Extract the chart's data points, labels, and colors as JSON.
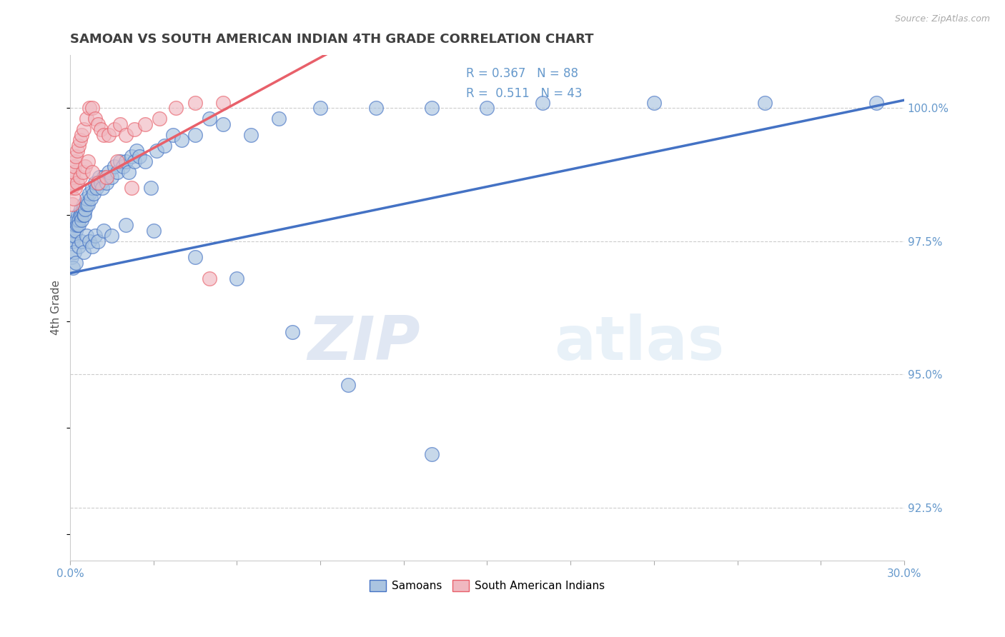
{
  "title": "SAMOAN VS SOUTH AMERICAN INDIAN 4TH GRADE CORRELATION CHART",
  "source": "Source: ZipAtlas.com",
  "ylabel": "4th Grade",
  "xlim": [
    0.0,
    30.0
  ],
  "ylim": [
    91.5,
    101.0
  ],
  "yticks": [
    92.5,
    95.0,
    97.5,
    100.0
  ],
  "ytick_labels": [
    "92.5%",
    "95.0%",
    "97.5%",
    "100.0%"
  ],
  "xticks": [
    0.0,
    3.0,
    6.0,
    9.0,
    12.0,
    15.0,
    18.0,
    21.0,
    24.0,
    27.0,
    30.0
  ],
  "legend_label1": "Samoans",
  "legend_label2": "South American Indians",
  "r1": 0.367,
  "n1": 88,
  "r2": 0.511,
  "n2": 43,
  "color1": "#aac4e0",
  "color2": "#f0b8c0",
  "line_color1": "#4472c4",
  "line_color2": "#e8606a",
  "background_color": "#ffffff",
  "grid_color": "#cccccc",
  "title_color": "#404040",
  "axis_color": "#6699cc",
  "watermark_zip": "ZIP",
  "watermark_atlas": "atlas",
  "samoans_x": [
    0.05,
    0.08,
    0.1,
    0.12,
    0.15,
    0.18,
    0.2,
    0.22,
    0.25,
    0.28,
    0.3,
    0.32,
    0.35,
    0.38,
    0.4,
    0.42,
    0.45,
    0.48,
    0.5,
    0.52,
    0.55,
    0.58,
    0.6,
    0.65,
    0.7,
    0.75,
    0.8,
    0.85,
    0.9,
    0.95,
    1.0,
    1.05,
    1.1,
    1.15,
    1.2,
    1.3,
    1.4,
    1.5,
    1.6,
    1.7,
    1.8,
    1.9,
    2.0,
    2.1,
    2.2,
    2.3,
    2.4,
    2.5,
    2.7,
    2.9,
    3.1,
    3.4,
    3.7,
    4.0,
    4.5,
    5.0,
    5.5,
    6.5,
    7.5,
    9.0,
    11.0,
    13.0,
    15.0,
    17.0,
    21.0,
    25.0,
    29.0,
    0.05,
    0.1,
    0.15,
    0.2,
    0.3,
    0.4,
    0.5,
    0.6,
    0.7,
    0.8,
    0.9,
    1.0,
    1.2,
    1.5,
    2.0,
    3.0,
    4.5,
    6.0,
    8.0,
    10.0,
    13.0
  ],
  "samoans_y": [
    97.5,
    97.6,
    97.5,
    97.7,
    97.6,
    97.8,
    97.7,
    97.9,
    97.8,
    98.0,
    97.9,
    97.8,
    98.0,
    98.1,
    98.0,
    97.9,
    98.1,
    98.0,
    98.2,
    98.0,
    98.1,
    98.2,
    98.3,
    98.2,
    98.4,
    98.3,
    98.5,
    98.4,
    98.6,
    98.5,
    98.6,
    98.7,
    98.6,
    98.5,
    98.7,
    98.6,
    98.8,
    98.7,
    98.9,
    98.8,
    99.0,
    98.9,
    99.0,
    98.8,
    99.1,
    99.0,
    99.2,
    99.1,
    99.0,
    98.5,
    99.2,
    99.3,
    99.5,
    99.4,
    99.5,
    99.8,
    99.7,
    99.5,
    99.8,
    100.0,
    100.0,
    100.0,
    100.0,
    100.1,
    100.1,
    100.1,
    100.1,
    97.2,
    97.0,
    97.3,
    97.1,
    97.4,
    97.5,
    97.3,
    97.6,
    97.5,
    97.4,
    97.6,
    97.5,
    97.7,
    97.6,
    97.8,
    97.7,
    97.2,
    96.8,
    95.8,
    94.8,
    93.5
  ],
  "sa_indians_x": [
    0.05,
    0.08,
    0.1,
    0.12,
    0.15,
    0.18,
    0.2,
    0.25,
    0.3,
    0.35,
    0.4,
    0.5,
    0.6,
    0.7,
    0.8,
    0.9,
    1.0,
    1.1,
    1.2,
    1.4,
    1.6,
    1.8,
    2.0,
    2.3,
    2.7,
    3.2,
    3.8,
    4.5,
    5.5,
    0.08,
    0.12,
    0.18,
    0.25,
    0.35,
    0.45,
    0.55,
    0.65,
    0.8,
    1.0,
    1.3,
    1.7,
    2.2,
    5.0
  ],
  "sa_indians_y": [
    98.5,
    98.6,
    98.7,
    98.8,
    98.9,
    99.0,
    99.1,
    99.2,
    99.3,
    99.4,
    99.5,
    99.6,
    99.8,
    100.0,
    100.0,
    99.8,
    99.7,
    99.6,
    99.5,
    99.5,
    99.6,
    99.7,
    99.5,
    99.6,
    99.7,
    99.8,
    100.0,
    100.1,
    100.1,
    98.2,
    98.3,
    98.5,
    98.6,
    98.7,
    98.8,
    98.9,
    99.0,
    98.8,
    98.6,
    98.7,
    99.0,
    98.5,
    96.8
  ],
  "trend1_x0": 0.0,
  "trend1_y0": 96.9,
  "trend1_x1": 30.0,
  "trend1_y1": 100.15,
  "trend2_x0": 0.0,
  "trend2_y0": 98.4,
  "trend2_x1": 6.0,
  "trend2_y1": 100.1
}
